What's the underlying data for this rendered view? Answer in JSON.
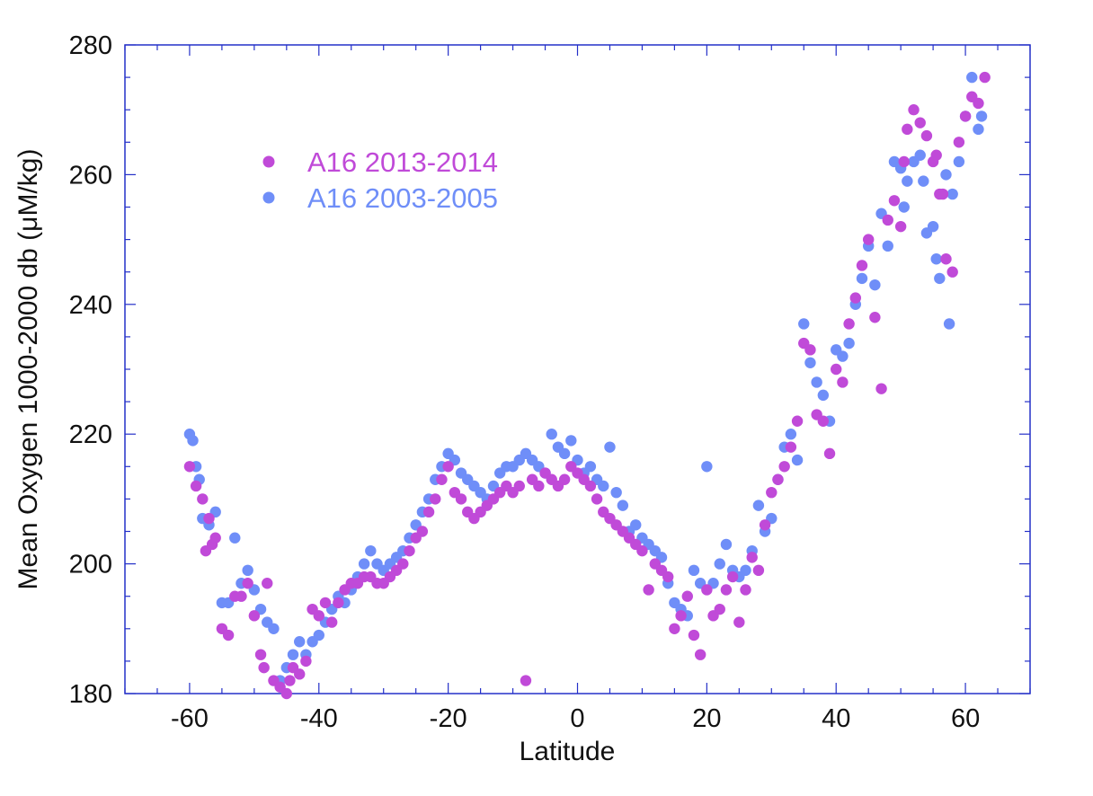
{
  "chart_data": {
    "type": "scatter",
    "xlabel": "Latitude",
    "ylabel": "Mean Oxygen 1000-2000 db (μM/kg)",
    "xlim": [
      -70,
      70
    ],
    "ylim": [
      180,
      280
    ],
    "xticks": [
      -60,
      -40,
      -20,
      0,
      20,
      40,
      60
    ],
    "yticks": [
      180,
      200,
      220,
      240,
      260,
      280
    ],
    "legend_position": "upper-left",
    "series": [
      {
        "name": "A16 2013-2014",
        "color": "#c04ad8",
        "points": [
          [
            -60,
            215
          ],
          [
            -59,
            212
          ],
          [
            -58,
            210
          ],
          [
            -57.5,
            202
          ],
          [
            -57,
            207
          ],
          [
            -56.5,
            203
          ],
          [
            -56,
            204
          ],
          [
            -55,
            190
          ],
          [
            -54,
            189
          ],
          [
            -53,
            195
          ],
          [
            -52,
            195
          ],
          [
            -51,
            197
          ],
          [
            -50,
            192
          ],
          [
            -49,
            186
          ],
          [
            -48.5,
            184
          ],
          [
            -48,
            197
          ],
          [
            -47,
            182
          ],
          [
            -46,
            181
          ],
          [
            -45,
            180
          ],
          [
            -44.5,
            182
          ],
          [
            -44,
            184
          ],
          [
            -43,
            183
          ],
          [
            -42,
            185
          ],
          [
            -41,
            193
          ],
          [
            -40,
            192
          ],
          [
            -39,
            194
          ],
          [
            -38,
            191
          ],
          [
            -37,
            194
          ],
          [
            -36,
            196
          ],
          [
            -35,
            197
          ],
          [
            -34,
            197
          ],
          [
            -33,
            198
          ],
          [
            -32,
            198
          ],
          [
            -31,
            197
          ],
          [
            -30,
            197
          ],
          [
            -29,
            198
          ],
          [
            -28,
            199
          ],
          [
            -27,
            200
          ],
          [
            -26,
            202
          ],
          [
            -25,
            204
          ],
          [
            -24,
            205
          ],
          [
            -23,
            208
          ],
          [
            -22,
            210
          ],
          [
            -21,
            213
          ],
          [
            -20,
            215
          ],
          [
            -19,
            211
          ],
          [
            -18,
            210
          ],
          [
            -17,
            208
          ],
          [
            -16,
            207
          ],
          [
            -15,
            208
          ],
          [
            -14,
            209
          ],
          [
            -13,
            210
          ],
          [
            -12,
            211
          ],
          [
            -11,
            212
          ],
          [
            -10,
            211
          ],
          [
            -9,
            212
          ],
          [
            -8,
            182
          ],
          [
            -7,
            213
          ],
          [
            -6,
            212
          ],
          [
            -5,
            214
          ],
          [
            -4,
            213
          ],
          [
            -3,
            212
          ],
          [
            -2,
            213
          ],
          [
            -1,
            215
          ],
          [
            0,
            214
          ],
          [
            1,
            213
          ],
          [
            2,
            212
          ],
          [
            3,
            210
          ],
          [
            4,
            208
          ],
          [
            5,
            207
          ],
          [
            6,
            206
          ],
          [
            7,
            205
          ],
          [
            8,
            204
          ],
          [
            9,
            203
          ],
          [
            10,
            202
          ],
          [
            11,
            196
          ],
          [
            12,
            200
          ],
          [
            13,
            199
          ],
          [
            14,
            198
          ],
          [
            15,
            190
          ],
          [
            16,
            192
          ],
          [
            17,
            195
          ],
          [
            18,
            189
          ],
          [
            19,
            186
          ],
          [
            20,
            196
          ],
          [
            21,
            192
          ],
          [
            22,
            193
          ],
          [
            23,
            196
          ],
          [
            24,
            198
          ],
          [
            25,
            191
          ],
          [
            26,
            196
          ],
          [
            27,
            201
          ],
          [
            28,
            199
          ],
          [
            29,
            206
          ],
          [
            30,
            211
          ],
          [
            31,
            213
          ],
          [
            32,
            215
          ],
          [
            33,
            218
          ],
          [
            34,
            222
          ],
          [
            35,
            234
          ],
          [
            36,
            233
          ],
          [
            37,
            223
          ],
          [
            38,
            222
          ],
          [
            39,
            217
          ],
          [
            40,
            230
          ],
          [
            41,
            228
          ],
          [
            42,
            237
          ],
          [
            43,
            241
          ],
          [
            44,
            246
          ],
          [
            45,
            250
          ],
          [
            46,
            238
          ],
          [
            47,
            227
          ],
          [
            48,
            253
          ],
          [
            49,
            256
          ],
          [
            50,
            252
          ],
          [
            51,
            267
          ],
          [
            52,
            270
          ],
          [
            53,
            268
          ],
          [
            54,
            266
          ],
          [
            55,
            262
          ],
          [
            56,
            257
          ],
          [
            57,
            247
          ],
          [
            58,
            245
          ],
          [
            59,
            265
          ],
          [
            60,
            269
          ],
          [
            61,
            272
          ],
          [
            62,
            271
          ],
          [
            63,
            275
          ],
          [
            50.5,
            262
          ],
          [
            55.5,
            263
          ],
          [
            56.5,
            257
          ]
        ]
      },
      {
        "name": "A16 2003-2005",
        "color": "#6f8ef8",
        "points": [
          [
            -60,
            220
          ],
          [
            -59.5,
            219
          ],
          [
            -59,
            215
          ],
          [
            -58.5,
            213
          ],
          [
            -58,
            207
          ],
          [
            -57,
            206
          ],
          [
            -56,
            208
          ],
          [
            -55,
            194
          ],
          [
            -54,
            194
          ],
          [
            -53,
            204
          ],
          [
            -52,
            197
          ],
          [
            -51,
            199
          ],
          [
            -50,
            196
          ],
          [
            -49,
            193
          ],
          [
            -48,
            191
          ],
          [
            -47,
            190
          ],
          [
            -46,
            182
          ],
          [
            -45,
            184
          ],
          [
            -44,
            186
          ],
          [
            -43,
            188
          ],
          [
            -42,
            186
          ],
          [
            -41,
            188
          ],
          [
            -40,
            189
          ],
          [
            -39,
            191
          ],
          [
            -38,
            193
          ],
          [
            -37,
            195
          ],
          [
            -36,
            194
          ],
          [
            -35,
            196
          ],
          [
            -34,
            198
          ],
          [
            -33,
            200
          ],
          [
            -32,
            202
          ],
          [
            -31,
            200
          ],
          [
            -30,
            199
          ],
          [
            -29,
            200
          ],
          [
            -28,
            201
          ],
          [
            -27,
            202
          ],
          [
            -26,
            204
          ],
          [
            -25,
            206
          ],
          [
            -24,
            208
          ],
          [
            -23,
            210
          ],
          [
            -22,
            213
          ],
          [
            -21,
            215
          ],
          [
            -20,
            217
          ],
          [
            -19,
            216
          ],
          [
            -18,
            214
          ],
          [
            -17,
            213
          ],
          [
            -16,
            212
          ],
          [
            -15,
            211
          ],
          [
            -14,
            210
          ],
          [
            -13,
            212
          ],
          [
            -12,
            214
          ],
          [
            -11,
            215
          ],
          [
            -10,
            215
          ],
          [
            -9,
            216
          ],
          [
            -8,
            217
          ],
          [
            -7,
            216
          ],
          [
            -6,
            215
          ],
          [
            -5,
            214
          ],
          [
            -4,
            220
          ],
          [
            -3,
            218
          ],
          [
            -2,
            217
          ],
          [
            -1,
            219
          ],
          [
            0,
            216
          ],
          [
            1,
            214
          ],
          [
            2,
            215
          ],
          [
            3,
            213
          ],
          [
            4,
            212
          ],
          [
            5,
            218
          ],
          [
            6,
            211
          ],
          [
            7,
            209
          ],
          [
            8,
            205
          ],
          [
            9,
            206
          ],
          [
            10,
            204
          ],
          [
            11,
            203
          ],
          [
            12,
            202
          ],
          [
            13,
            201
          ],
          [
            14,
            197
          ],
          [
            15,
            194
          ],
          [
            16,
            193
          ],
          [
            17,
            192
          ],
          [
            18,
            199
          ],
          [
            19,
            197
          ],
          [
            20,
            215
          ],
          [
            21,
            197
          ],
          [
            22,
            200
          ],
          [
            23,
            203
          ],
          [
            24,
            199
          ],
          [
            25,
            198
          ],
          [
            26,
            199
          ],
          [
            27,
            202
          ],
          [
            28,
            209
          ],
          [
            29,
            205
          ],
          [
            30,
            207
          ],
          [
            31,
            213
          ],
          [
            32,
            218
          ],
          [
            33,
            220
          ],
          [
            34,
            216
          ],
          [
            35,
            237
          ],
          [
            36,
            231
          ],
          [
            37,
            228
          ],
          [
            38,
            226
          ],
          [
            39,
            222
          ],
          [
            40,
            233
          ],
          [
            41,
            232
          ],
          [
            42,
            234
          ],
          [
            43,
            240
          ],
          [
            44,
            244
          ],
          [
            45,
            249
          ],
          [
            46,
            243
          ],
          [
            47,
            254
          ],
          [
            48,
            249
          ],
          [
            49,
            262
          ],
          [
            50,
            261
          ],
          [
            51,
            259
          ],
          [
            52,
            262
          ],
          [
            53,
            263
          ],
          [
            54,
            251
          ],
          [
            55,
            252
          ],
          [
            56,
            244
          ],
          [
            57,
            260
          ],
          [
            58,
            257
          ],
          [
            59,
            262
          ],
          [
            60,
            269
          ],
          [
            61,
            275
          ],
          [
            62,
            267
          ],
          [
            62.5,
            269
          ],
          [
            50.5,
            255
          ],
          [
            53.5,
            259
          ],
          [
            55.5,
            247
          ],
          [
            57.5,
            237
          ]
        ]
      }
    ]
  }
}
